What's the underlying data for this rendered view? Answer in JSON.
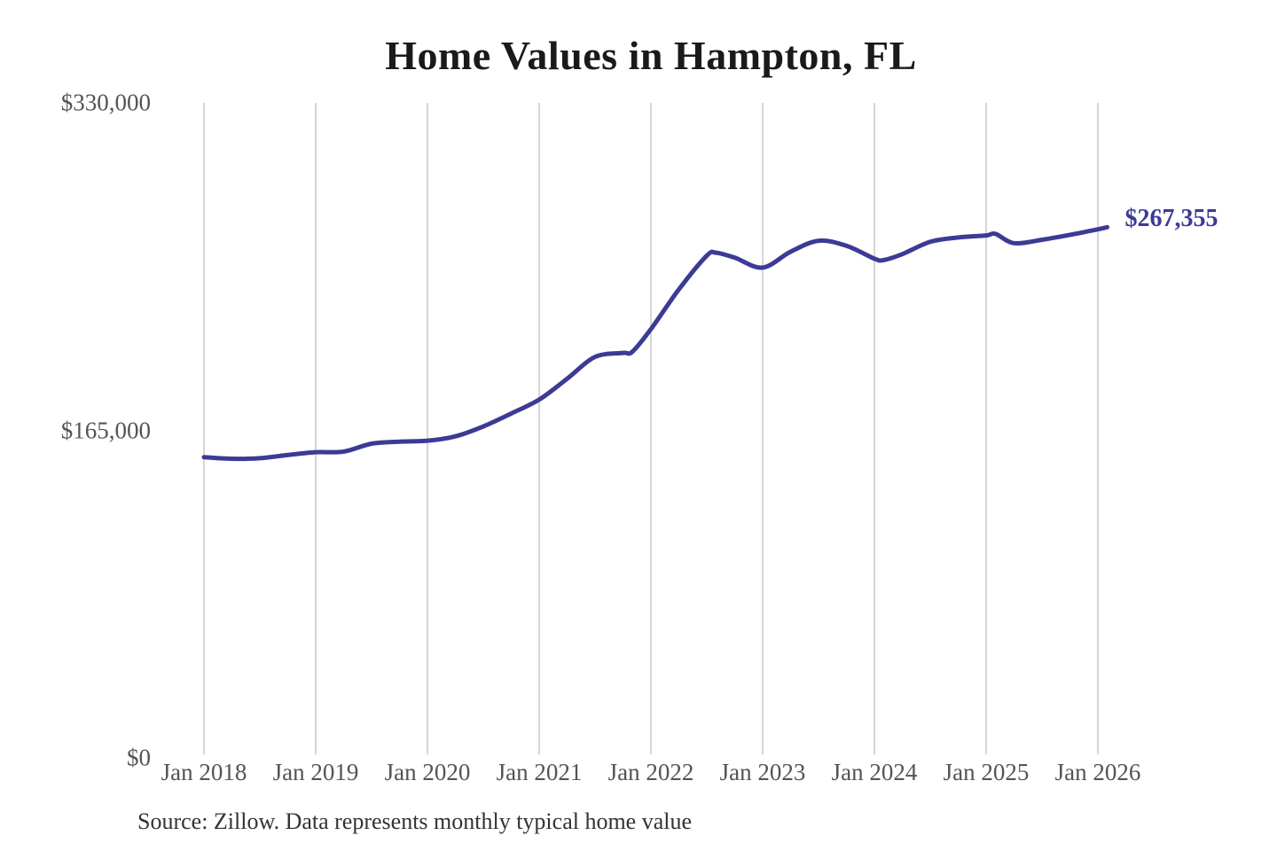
{
  "page": {
    "background": "#ffffff",
    "source_note": "Source: Zillow. Data represents monthly typical home value"
  },
  "chart_data": {
    "type": "line",
    "title": "Home Values in Hampton, FL",
    "xlabel": "",
    "ylabel": "",
    "ylim": [
      0,
      330000
    ],
    "grid": "vertical-only",
    "legend": "none",
    "colors": {
      "line": "#3b3b96",
      "end_label": "#3b3b96",
      "gridline": "#cbcbcb",
      "tick_label": "#545454",
      "title": "#1a1a1a",
      "source": "#333333"
    },
    "y_ticks": [
      {
        "label": "$0",
        "value": 0
      },
      {
        "label": "$165,000",
        "value": 165000
      },
      {
        "label": "$330,000",
        "value": 330000
      }
    ],
    "x_ticks": [
      "Jan 2018",
      "Jan 2019",
      "Jan 2020",
      "Jan 2021",
      "Jan 2022",
      "Jan 2023",
      "Jan 2024",
      "Jan 2025",
      "Jan 2026"
    ],
    "end_label": "$267,355",
    "end_value": 267355,
    "series": [
      {
        "name": "Monthly typical home value",
        "points": [
          [
            "Jan 2018",
            151500
          ],
          [
            "Apr 2018",
            150700
          ],
          [
            "Jul 2018",
            151000
          ],
          [
            "Oct 2018",
            152600
          ],
          [
            "Jan 2019",
            154000
          ],
          [
            "Apr 2019",
            154300
          ],
          [
            "Jul 2019",
            158300
          ],
          [
            "Oct 2019",
            159300
          ],
          [
            "Jan 2020",
            159800
          ],
          [
            "Apr 2020",
            162000
          ],
          [
            "Jul 2020",
            167000
          ],
          [
            "Oct 2020",
            173500
          ],
          [
            "Jan 2021",
            180500
          ],
          [
            "Apr 2021",
            191000
          ],
          [
            "Jul 2021",
            202000
          ],
          [
            "Oct 2021",
            204000
          ],
          [
            "Nov 2021",
            204600
          ],
          [
            "Jan 2022",
            216000
          ],
          [
            "Apr 2022",
            236000
          ],
          [
            "Jul 2022",
            253000
          ],
          [
            "Aug 2022",
            254500
          ],
          [
            "Oct 2022",
            252000
          ],
          [
            "Jan 2023",
            247000
          ],
          [
            "Apr 2023",
            255000
          ],
          [
            "Jul 2023",
            260500
          ],
          [
            "Oct 2023",
            258000
          ],
          [
            "Jan 2024",
            251500
          ],
          [
            "Feb 2024",
            250800
          ],
          [
            "Apr 2024",
            253800
          ],
          [
            "Jul 2024",
            260000
          ],
          [
            "Oct 2024",
            262200
          ],
          [
            "Jan 2025",
            263200
          ],
          [
            "Feb 2025",
            264000
          ],
          [
            "Apr 2025",
            259300
          ],
          [
            "Jul 2025",
            261000
          ],
          [
            "Oct 2025",
            263500
          ],
          [
            "Jan 2026",
            266300
          ],
          [
            "Feb 2026",
            267355
          ]
        ]
      }
    ]
  }
}
